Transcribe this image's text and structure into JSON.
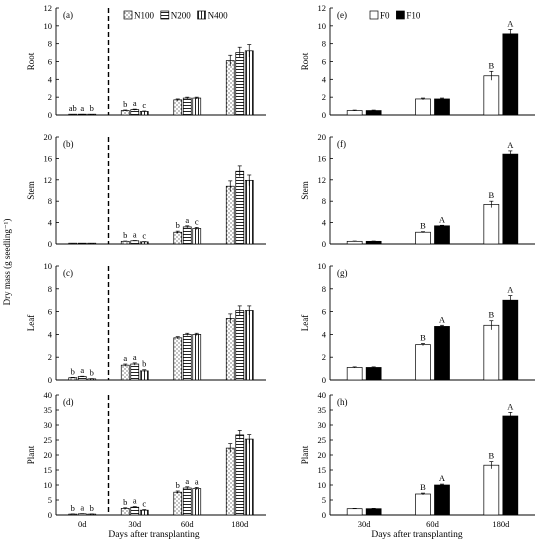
{
  "figure": {
    "left_xlabel": "Days after transplanting",
    "right_xlabel": "Days after transplanting",
    "shared_ylabel": "Dry mass (g seedling⁻¹)"
  },
  "chart_data": [
    {
      "id": "a",
      "panel_label": "(a)",
      "type": "bar",
      "ylabel": "Root",
      "ylim": [
        0,
        12
      ],
      "yticks": [
        0,
        2,
        4,
        6,
        8,
        10,
        12
      ],
      "categories": [
        "0d",
        "30d",
        "60d",
        "180d"
      ],
      "show_xticks": false,
      "legend": [
        "N100",
        "N200",
        "N400"
      ],
      "divider_after": 0,
      "series": [
        {
          "name": "N100",
          "values": [
            0.05,
            0.5,
            1.7,
            6.1
          ],
          "errors": [
            0.02,
            0.06,
            0.1,
            0.6
          ]
        },
        {
          "name": "N200",
          "values": [
            0.06,
            0.6,
            1.9,
            7.0
          ],
          "errors": [
            0.02,
            0.06,
            0.1,
            0.6
          ]
        },
        {
          "name": "N400",
          "values": [
            0.05,
            0.4,
            1.9,
            7.2
          ],
          "errors": [
            0.02,
            0.05,
            0.1,
            0.7
          ]
        }
      ],
      "letters": [
        [
          "ab",
          "a",
          "b"
        ],
        [
          "b",
          "a",
          "c"
        ],
        [
          "",
          "",
          ""
        ],
        [
          "",
          "",
          ""
        ]
      ]
    },
    {
      "id": "b",
      "panel_label": "(b)",
      "type": "bar",
      "ylabel": "Stem",
      "ylim": [
        0,
        20
      ],
      "yticks": [
        0,
        4,
        8,
        12,
        16,
        20
      ],
      "categories": [
        "0d",
        "30d",
        "60d",
        "180d"
      ],
      "show_xticks": false,
      "legend": [],
      "divider_after": 0,
      "series": [
        {
          "name": "N100",
          "values": [
            0.1,
            0.5,
            2.2,
            10.8
          ],
          "errors": [
            0.02,
            0.05,
            0.2,
            1.0
          ]
        },
        {
          "name": "N200",
          "values": [
            0.1,
            0.6,
            3.2,
            13.6
          ],
          "errors": [
            0.02,
            0.05,
            0.2,
            1.0
          ]
        },
        {
          "name": "N400",
          "values": [
            0.1,
            0.4,
            2.9,
            11.9
          ],
          "errors": [
            0.02,
            0.05,
            0.2,
            1.0
          ]
        }
      ],
      "letters": [
        [
          "",
          "",
          ""
        ],
        [
          "b",
          "a",
          "c"
        ],
        [
          "b",
          "a",
          "c"
        ],
        [
          "",
          "",
          ""
        ]
      ]
    },
    {
      "id": "c",
      "panel_label": "(c)",
      "type": "bar",
      "ylabel": "Leaf",
      "ylim": [
        0,
        10
      ],
      "yticks": [
        0,
        2,
        4,
        6,
        8,
        10
      ],
      "categories": [
        "0d",
        "30d",
        "60d",
        "180d"
      ],
      "show_xticks": false,
      "legend": [],
      "divider_after": 0,
      "series": [
        {
          "name": "N100",
          "values": [
            0.2,
            1.3,
            3.7,
            5.4
          ],
          "errors": [
            0.03,
            0.1,
            0.1,
            0.4
          ]
        },
        {
          "name": "N200",
          "values": [
            0.3,
            1.4,
            4.0,
            6.1
          ],
          "errors": [
            0.03,
            0.1,
            0.1,
            0.4
          ]
        },
        {
          "name": "N400",
          "values": [
            0.1,
            0.8,
            4.0,
            6.1
          ],
          "errors": [
            0.02,
            0.1,
            0.1,
            0.4
          ]
        }
      ],
      "letters": [
        [
          "b",
          "a",
          "b"
        ],
        [
          "a",
          "a",
          "b"
        ],
        [
          "",
          "",
          ""
        ],
        [
          "",
          "",
          ""
        ]
      ]
    },
    {
      "id": "d",
      "panel_label": "(d)",
      "type": "bar",
      "ylabel": "Plant",
      "ylim": [
        0,
        40
      ],
      "yticks": [
        0,
        5,
        10,
        15,
        20,
        25,
        30,
        35,
        40
      ],
      "categories": [
        "0d",
        "30d",
        "60d",
        "180d"
      ],
      "show_xticks": true,
      "legend": [],
      "divider_after": 0,
      "series": [
        {
          "name": "N100",
          "values": [
            0.3,
            2.2,
            7.6,
            22.3
          ],
          "errors": [
            0.05,
            0.2,
            0.4,
            1.5
          ]
        },
        {
          "name": "N200",
          "values": [
            0.4,
            2.6,
            9.0,
            26.7
          ],
          "errors": [
            0.05,
            0.2,
            0.4,
            1.5
          ]
        },
        {
          "name": "N400",
          "values": [
            0.3,
            1.6,
            8.8,
            25.3
          ],
          "errors": [
            0.05,
            0.2,
            0.4,
            1.5
          ]
        }
      ],
      "letters": [
        [
          "b",
          "a",
          "b"
        ],
        [
          "b",
          "a",
          "c"
        ],
        [
          "b",
          "a",
          "a"
        ],
        [
          "",
          "",
          ""
        ]
      ]
    },
    {
      "id": "e",
      "panel_label": "(e)",
      "type": "bar",
      "ylabel": "Root",
      "ylim": [
        0,
        12
      ],
      "yticks": [
        0,
        2,
        4,
        6,
        8,
        10,
        12
      ],
      "categories": [
        "30d",
        "60d",
        "180d"
      ],
      "show_xticks": false,
      "legend": [
        "F0",
        "F10"
      ],
      "divider_after": null,
      "series": [
        {
          "name": "F0",
          "values": [
            0.5,
            1.8,
            4.4
          ],
          "errors": [
            0.05,
            0.1,
            0.5
          ]
        },
        {
          "name": "F10",
          "values": [
            0.5,
            1.8,
            9.1
          ],
          "errors": [
            0.05,
            0.1,
            0.5
          ]
        }
      ],
      "letters": [
        [
          "",
          ""
        ],
        [
          "",
          ""
        ],
        [
          "B",
          "A"
        ]
      ]
    },
    {
      "id": "f",
      "panel_label": "(f)",
      "type": "bar",
      "ylabel": "Stem",
      "ylim": [
        0,
        20
      ],
      "yticks": [
        0,
        4,
        8,
        12,
        16,
        20
      ],
      "categories": [
        "30d",
        "60d",
        "180d"
      ],
      "show_xticks": false,
      "legend": [],
      "divider_after": null,
      "series": [
        {
          "name": "F0",
          "values": [
            0.5,
            2.2,
            7.4
          ],
          "errors": [
            0.05,
            0.1,
            0.6
          ]
        },
        {
          "name": "F10",
          "values": [
            0.5,
            3.4,
            16.8
          ],
          "errors": [
            0.05,
            0.1,
            0.6
          ]
        }
      ],
      "letters": [
        [
          "",
          ""
        ],
        [
          "B",
          "A"
        ],
        [
          "B",
          "A"
        ]
      ]
    },
    {
      "id": "g",
      "panel_label": "(g)",
      "type": "bar",
      "ylabel": "Leaf",
      "ylim": [
        0,
        10
      ],
      "yticks": [
        0,
        2,
        4,
        6,
        8,
        10
      ],
      "categories": [
        "30d",
        "60d",
        "180d"
      ],
      "show_xticks": false,
      "legend": [],
      "divider_after": null,
      "series": [
        {
          "name": "F0",
          "values": [
            1.1,
            3.1,
            4.8
          ],
          "errors": [
            0.05,
            0.1,
            0.4
          ]
        },
        {
          "name": "F10",
          "values": [
            1.1,
            4.7,
            7.0
          ],
          "errors": [
            0.05,
            0.1,
            0.4
          ]
        }
      ],
      "letters": [
        [
          "",
          ""
        ],
        [
          "B",
          "A"
        ],
        [
          "B",
          "A"
        ]
      ]
    },
    {
      "id": "h",
      "panel_label": "(h)",
      "type": "bar",
      "ylabel": "Plant",
      "ylim": [
        0,
        40
      ],
      "yticks": [
        0,
        5,
        10,
        15,
        20,
        25,
        30,
        35,
        40
      ],
      "categories": [
        "30d",
        "60d",
        "180d"
      ],
      "show_xticks": true,
      "legend": [],
      "divider_after": null,
      "series": [
        {
          "name": "F0",
          "values": [
            2.1,
            7.0,
            16.6
          ],
          "errors": [
            0.1,
            0.3,
            1.2
          ]
        },
        {
          "name": "F10",
          "values": [
            2.1,
            10.0,
            33.0
          ],
          "errors": [
            0.1,
            0.3,
            1.2
          ]
        }
      ],
      "letters": [
        [
          "",
          ""
        ],
        [
          "B",
          "A"
        ],
        [
          "B",
          "A"
        ]
      ]
    }
  ]
}
